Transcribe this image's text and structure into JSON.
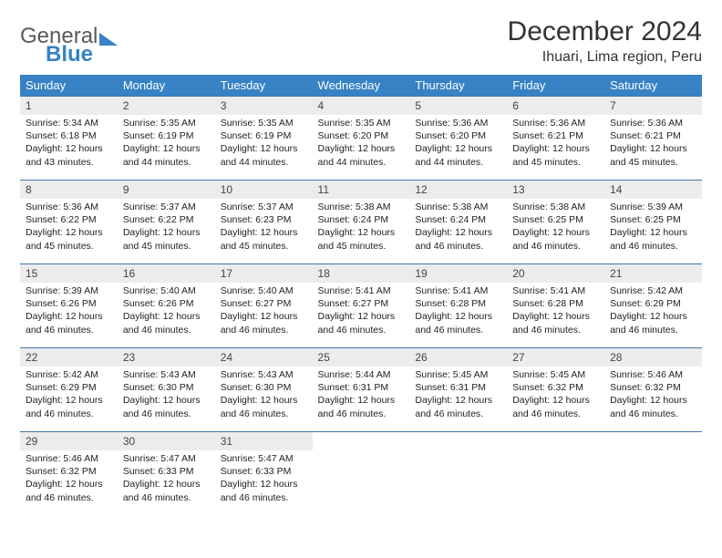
{
  "logo": {
    "grey": "General",
    "blue": "Blue"
  },
  "title": "December 2024",
  "location": "Ihuari, Lima region, Peru",
  "colors": {
    "header_bg": "#3682c4",
    "header_fg": "#ffffff",
    "daynum_bg": "#ececec",
    "border": "#3f77a8",
    "text": "#222222"
  },
  "font": {
    "title_size": 30,
    "location_size": 16,
    "header_size": 13,
    "daynum_size": 12,
    "cell_size": 10.5
  },
  "weekdays": [
    "Sunday",
    "Monday",
    "Tuesday",
    "Wednesday",
    "Thursday",
    "Friday",
    "Saturday"
  ],
  "weeks": [
    [
      {
        "n": "1",
        "sr": "Sunrise: 5:34 AM",
        "ss": "Sunset: 6:18 PM",
        "d1": "Daylight: 12 hours",
        "d2": "and 43 minutes."
      },
      {
        "n": "2",
        "sr": "Sunrise: 5:35 AM",
        "ss": "Sunset: 6:19 PM",
        "d1": "Daylight: 12 hours",
        "d2": "and 44 minutes."
      },
      {
        "n": "3",
        "sr": "Sunrise: 5:35 AM",
        "ss": "Sunset: 6:19 PM",
        "d1": "Daylight: 12 hours",
        "d2": "and 44 minutes."
      },
      {
        "n": "4",
        "sr": "Sunrise: 5:35 AM",
        "ss": "Sunset: 6:20 PM",
        "d1": "Daylight: 12 hours",
        "d2": "and 44 minutes."
      },
      {
        "n": "5",
        "sr": "Sunrise: 5:36 AM",
        "ss": "Sunset: 6:20 PM",
        "d1": "Daylight: 12 hours",
        "d2": "and 44 minutes."
      },
      {
        "n": "6",
        "sr": "Sunrise: 5:36 AM",
        "ss": "Sunset: 6:21 PM",
        "d1": "Daylight: 12 hours",
        "d2": "and 45 minutes."
      },
      {
        "n": "7",
        "sr": "Sunrise: 5:36 AM",
        "ss": "Sunset: 6:21 PM",
        "d1": "Daylight: 12 hours",
        "d2": "and 45 minutes."
      }
    ],
    [
      {
        "n": "8",
        "sr": "Sunrise: 5:36 AM",
        "ss": "Sunset: 6:22 PM",
        "d1": "Daylight: 12 hours",
        "d2": "and 45 minutes."
      },
      {
        "n": "9",
        "sr": "Sunrise: 5:37 AM",
        "ss": "Sunset: 6:22 PM",
        "d1": "Daylight: 12 hours",
        "d2": "and 45 minutes."
      },
      {
        "n": "10",
        "sr": "Sunrise: 5:37 AM",
        "ss": "Sunset: 6:23 PM",
        "d1": "Daylight: 12 hours",
        "d2": "and 45 minutes."
      },
      {
        "n": "11",
        "sr": "Sunrise: 5:38 AM",
        "ss": "Sunset: 6:24 PM",
        "d1": "Daylight: 12 hours",
        "d2": "and 45 minutes."
      },
      {
        "n": "12",
        "sr": "Sunrise: 5:38 AM",
        "ss": "Sunset: 6:24 PM",
        "d1": "Daylight: 12 hours",
        "d2": "and 46 minutes."
      },
      {
        "n": "13",
        "sr": "Sunrise: 5:38 AM",
        "ss": "Sunset: 6:25 PM",
        "d1": "Daylight: 12 hours",
        "d2": "and 46 minutes."
      },
      {
        "n": "14",
        "sr": "Sunrise: 5:39 AM",
        "ss": "Sunset: 6:25 PM",
        "d1": "Daylight: 12 hours",
        "d2": "and 46 minutes."
      }
    ],
    [
      {
        "n": "15",
        "sr": "Sunrise: 5:39 AM",
        "ss": "Sunset: 6:26 PM",
        "d1": "Daylight: 12 hours",
        "d2": "and 46 minutes."
      },
      {
        "n": "16",
        "sr": "Sunrise: 5:40 AM",
        "ss": "Sunset: 6:26 PM",
        "d1": "Daylight: 12 hours",
        "d2": "and 46 minutes."
      },
      {
        "n": "17",
        "sr": "Sunrise: 5:40 AM",
        "ss": "Sunset: 6:27 PM",
        "d1": "Daylight: 12 hours",
        "d2": "and 46 minutes."
      },
      {
        "n": "18",
        "sr": "Sunrise: 5:41 AM",
        "ss": "Sunset: 6:27 PM",
        "d1": "Daylight: 12 hours",
        "d2": "and 46 minutes."
      },
      {
        "n": "19",
        "sr": "Sunrise: 5:41 AM",
        "ss": "Sunset: 6:28 PM",
        "d1": "Daylight: 12 hours",
        "d2": "and 46 minutes."
      },
      {
        "n": "20",
        "sr": "Sunrise: 5:41 AM",
        "ss": "Sunset: 6:28 PM",
        "d1": "Daylight: 12 hours",
        "d2": "and 46 minutes."
      },
      {
        "n": "21",
        "sr": "Sunrise: 5:42 AM",
        "ss": "Sunset: 6:29 PM",
        "d1": "Daylight: 12 hours",
        "d2": "and 46 minutes."
      }
    ],
    [
      {
        "n": "22",
        "sr": "Sunrise: 5:42 AM",
        "ss": "Sunset: 6:29 PM",
        "d1": "Daylight: 12 hours",
        "d2": "and 46 minutes."
      },
      {
        "n": "23",
        "sr": "Sunrise: 5:43 AM",
        "ss": "Sunset: 6:30 PM",
        "d1": "Daylight: 12 hours",
        "d2": "and 46 minutes."
      },
      {
        "n": "24",
        "sr": "Sunrise: 5:43 AM",
        "ss": "Sunset: 6:30 PM",
        "d1": "Daylight: 12 hours",
        "d2": "and 46 minutes."
      },
      {
        "n": "25",
        "sr": "Sunrise: 5:44 AM",
        "ss": "Sunset: 6:31 PM",
        "d1": "Daylight: 12 hours",
        "d2": "and 46 minutes."
      },
      {
        "n": "26",
        "sr": "Sunrise: 5:45 AM",
        "ss": "Sunset: 6:31 PM",
        "d1": "Daylight: 12 hours",
        "d2": "and 46 minutes."
      },
      {
        "n": "27",
        "sr": "Sunrise: 5:45 AM",
        "ss": "Sunset: 6:32 PM",
        "d1": "Daylight: 12 hours",
        "d2": "and 46 minutes."
      },
      {
        "n": "28",
        "sr": "Sunrise: 5:46 AM",
        "ss": "Sunset: 6:32 PM",
        "d1": "Daylight: 12 hours",
        "d2": "and 46 minutes."
      }
    ],
    [
      {
        "n": "29",
        "sr": "Sunrise: 5:46 AM",
        "ss": "Sunset: 6:32 PM",
        "d1": "Daylight: 12 hours",
        "d2": "and 46 minutes."
      },
      {
        "n": "30",
        "sr": "Sunrise: 5:47 AM",
        "ss": "Sunset: 6:33 PM",
        "d1": "Daylight: 12 hours",
        "d2": "and 46 minutes."
      },
      {
        "n": "31",
        "sr": "Sunrise: 5:47 AM",
        "ss": "Sunset: 6:33 PM",
        "d1": "Daylight: 12 hours",
        "d2": "and 46 minutes."
      },
      null,
      null,
      null,
      null
    ]
  ]
}
